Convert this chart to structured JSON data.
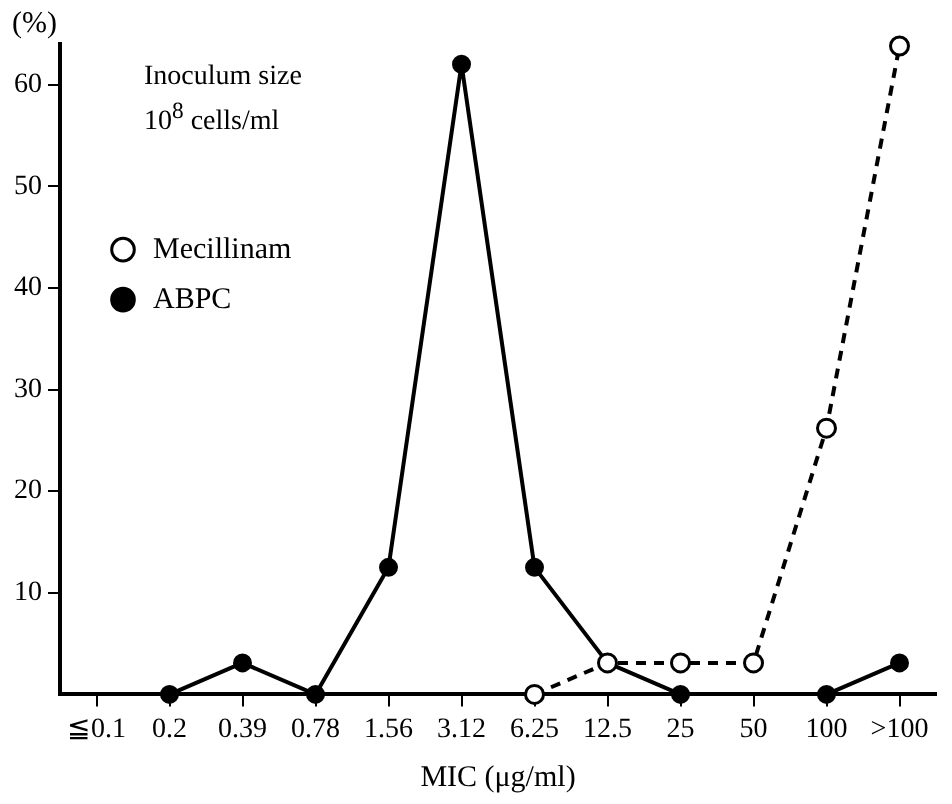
{
  "chart_data": {
    "type": "line",
    "ylabel": "(%)",
    "xlabel": "MIC (μg/ml)",
    "annotations": [
      "Inoculum size\n10$^{8}$ cells/ml"
    ],
    "categories": [
      "≦0.1",
      "0.2",
      "0.39",
      "0.78",
      "1.56",
      "3.12",
      "6.25",
      "12.5",
      "25",
      "50",
      "100",
      ">100"
    ],
    "series": [
      {
        "name": "Mecillinam",
        "color": "#000000",
        "line_style": "dashed",
        "values": [
          null,
          null,
          null,
          null,
          null,
          null,
          0,
          3.1,
          3.1,
          3.1,
          26.2,
          63.8
        ]
      },
      {
        "name": "ABPC",
        "color": "#000000",
        "line_style": "solid",
        "values": [
          null,
          0,
          3.1,
          0,
          12.5,
          62,
          12.5,
          3.1,
          0,
          null,
          0,
          3.1
        ]
      }
    ],
    "ylim": [
      0,
      64
    ],
    "yticks": [
      10,
      20,
      30,
      40,
      50,
      60
    ],
    "grid": false,
    "legend": "left",
    "marker": "circle"
  }
}
